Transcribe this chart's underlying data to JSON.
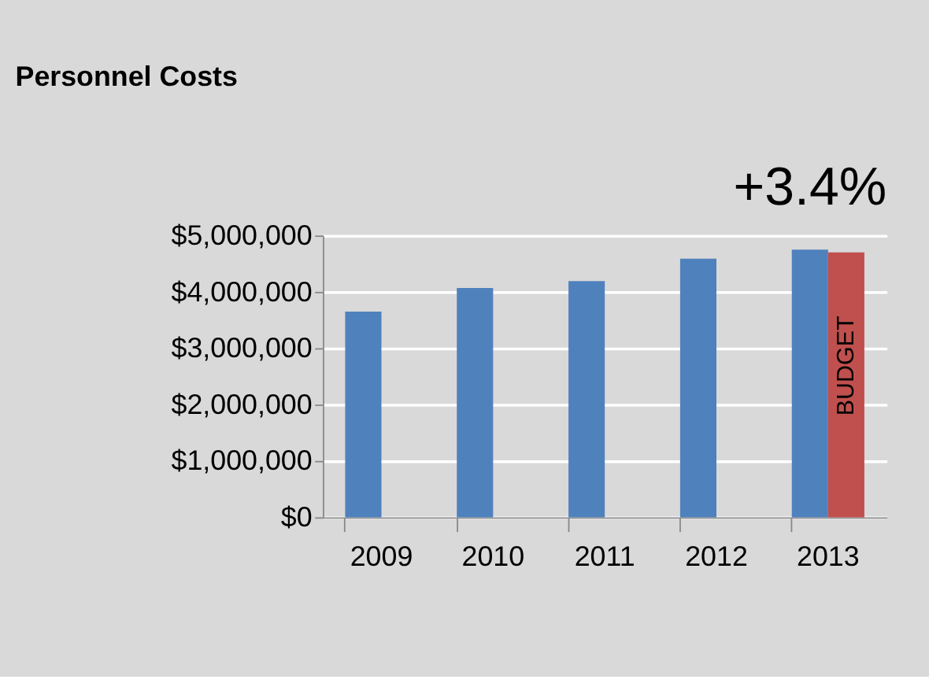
{
  "chart_data": {
    "type": "bar",
    "title": "Personnel Costs",
    "annotations": [
      "+3.4%"
    ],
    "categories": [
      "2009",
      "2010",
      "2011",
      "2012",
      "2013"
    ],
    "series": [
      {
        "color": "#4f81bd",
        "values": [
          3650000,
          4070000,
          4190000,
          4590000,
          4750000
        ]
      },
      {
        "name": "BUDGET",
        "color": "#c0504d",
        "values": [
          null,
          null,
          null,
          null,
          4700000
        ]
      }
    ],
    "ylim": [
      0,
      5000000
    ],
    "yticks": [
      {
        "value": 0,
        "label": "$0"
      },
      {
        "value": 1000000,
        "label": "$1,000,000"
      },
      {
        "value": 2000000,
        "label": "$2,000,000"
      },
      {
        "value": 3000000,
        "label": "$3,000,000"
      },
      {
        "value": 4000000,
        "label": "$4,000,000"
      },
      {
        "value": 5000000,
        "label": "$5,000,000"
      }
    ],
    "grid": "y",
    "legend": false
  }
}
